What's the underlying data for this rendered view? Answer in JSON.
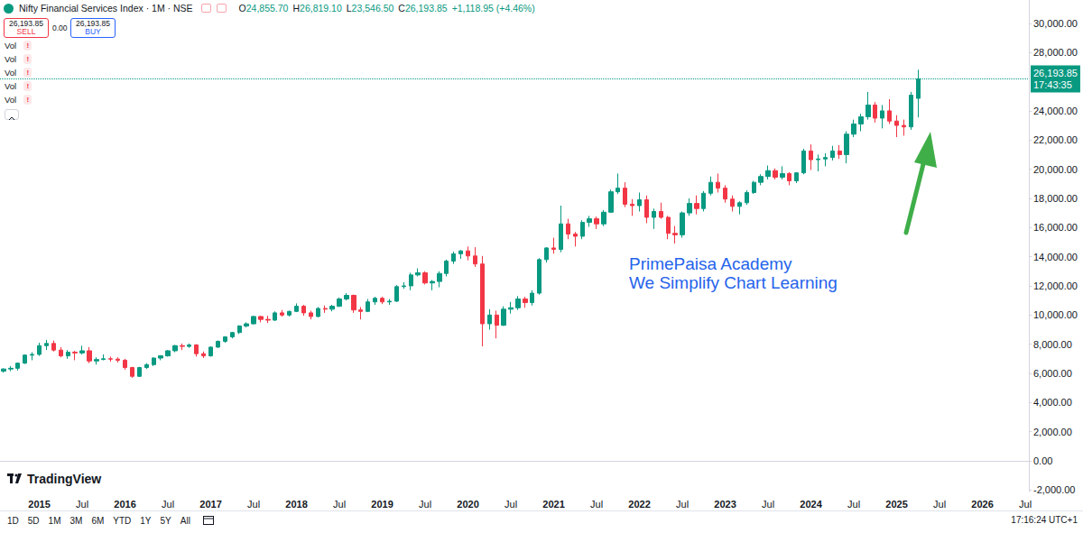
{
  "chart_data": {
    "type": "candlestick",
    "title": "Nifty Financial Services Index · 1M · NSE",
    "ohlc_readout": [
      {
        "label": "O",
        "value": "24,855.70"
      },
      {
        "label": "H",
        "value": "26,819.10"
      },
      {
        "label": "L",
        "value": "23,546.50"
      },
      {
        "label": "C",
        "value": "26,193.85"
      }
    ],
    "change": "+1,118.95 (+4.46%)",
    "annotations": [
      "PrimePaisa Academy",
      "We Simplify Chart Learning"
    ],
    "last_price": {
      "value": 26193.85,
      "label": "26,193.85",
      "countdown": "17:43:35"
    },
    "color": "#089981",
    "grid": false,
    "categories": [
      null,
      null,
      null,
      null,
      null,
      "2015",
      null,
      null,
      null,
      null,
      null,
      "Jul",
      null,
      null,
      null,
      null,
      null,
      "2016",
      null,
      null,
      null,
      null,
      null,
      "Jul",
      null,
      null,
      null,
      null,
      null,
      "2017",
      null,
      null,
      null,
      null,
      null,
      "Jul",
      null,
      null,
      null,
      null,
      null,
      "2018",
      null,
      null,
      null,
      null,
      null,
      "Jul",
      null,
      null,
      null,
      null,
      null,
      "2019",
      null,
      null,
      null,
      null,
      null,
      "Jul",
      null,
      null,
      null,
      null,
      null,
      "2020",
      null,
      null,
      null,
      null,
      null,
      "Jul",
      null,
      null,
      null,
      null,
      null,
      "2021",
      null,
      null,
      null,
      null,
      null,
      "Jul",
      null,
      null,
      null,
      null,
      null,
      "2022",
      null,
      null,
      null,
      null,
      null,
      "Jul",
      null,
      null,
      null,
      null,
      null,
      "2023",
      null,
      null,
      null,
      null,
      null,
      "Jul",
      null,
      null,
      null,
      null,
      null,
      "2024",
      null,
      null,
      null,
      null,
      null,
      "Jul",
      null,
      null,
      null,
      null,
      null,
      "2025",
      null,
      null,
      null,
      null,
      null,
      "Jul",
      null,
      null,
      null,
      null,
      null,
      "2026",
      null,
      null,
      null,
      null,
      null,
      "Jul"
    ],
    "open": [
      6150,
      6300,
      6350,
      6700,
      7250,
      7300,
      7900,
      8050,
      7600,
      7200,
      7450,
      7400,
      7550,
      6850,
      6950,
      7000,
      6980,
      6900,
      6400,
      5800,
      6400,
      6600,
      7050,
      7200,
      7550,
      7900,
      7850,
      7950,
      7350,
      7200,
      7800,
      8200,
      8500,
      8800,
      9250,
      9400,
      9900,
      9700,
      9650,
      10150,
      10000,
      10250,
      10600,
      10150,
      9900,
      10450,
      10400,
      10600,
      11100,
      11350,
      10350,
      10250,
      10900,
      11150,
      10900,
      10950,
      11950,
      12000,
      12750,
      12900,
      12200,
      12300,
      12850,
      13700,
      14200,
      14400,
      14050,
      13500,
      9400,
      10000,
      9300,
      10400,
      10500,
      11100,
      10850,
      11500,
      13800,
      14600,
      14500,
      16250,
      15550,
      15400,
      16350,
      16600,
      16250,
      17050,
      18450,
      18700,
      17600,
      17500,
      17900,
      16700,
      17100,
      16700,
      15600,
      15500,
      17000,
      17650,
      17300,
      18350,
      19100,
      18700,
      17950,
      17450,
      17700,
      18400,
      19100,
      19500,
      19900,
      19450,
      19700,
      19200,
      19750,
      21250,
      20650,
      20700,
      20800,
      21250,
      21000,
      22400,
      23100,
      23600,
      24400,
      23500,
      24000,
      23300,
      23000,
      22900,
      24855.7,
      null,
      null,
      null,
      null,
      null,
      null,
      null,
      null,
      null,
      null,
      null,
      null,
      null,
      null,
      null
    ],
    "high": [
      6350,
      6500,
      6750,
      7300,
      7450,
      8100,
      8300,
      8250,
      7800,
      7600,
      7550,
      7900,
      7800,
      7100,
      7300,
      7150,
      7100,
      7000,
      6450,
      6450,
      6700,
      7100,
      7250,
      7600,
      7950,
      8050,
      8050,
      8000,
      7500,
      7850,
      8250,
      8550,
      8850,
      9300,
      9500,
      9950,
      9950,
      9950,
      10250,
      10350,
      10300,
      10800,
      10700,
      10300,
      10550,
      10650,
      10700,
      11200,
      11500,
      11400,
      10550,
      11100,
      11250,
      11250,
      11100,
      12050,
      12250,
      12900,
      13200,
      13000,
      12400,
      13000,
      13800,
      14350,
      14450,
      14700,
      14650,
      14050,
      10400,
      10300,
      10600,
      10900,
      11300,
      11250,
      11700,
      13900,
      14650,
      15300,
      17500,
      16600,
      15700,
      16500,
      16800,
      16750,
      17200,
      18600,
      19700,
      19100,
      17950,
      18400,
      18200,
      17300,
      17700,
      16800,
      16100,
      17100,
      18000,
      18200,
      18500,
      19500,
      19700,
      18900,
      18200,
      17800,
      18550,
      19200,
      19650,
      20250,
      20050,
      20200,
      19800,
      19800,
      21400,
      21700,
      21000,
      21100,
      21600,
      21650,
      22600,
      23400,
      23800,
      25300,
      24600,
      24400,
      24800,
      23700,
      23400,
      25300,
      26819.1,
      null,
      null,
      null,
      null,
      null,
      null,
      null,
      null,
      null,
      null,
      null,
      null,
      null,
      null,
      null
    ],
    "low": [
      6050,
      6150,
      6200,
      6650,
      6900,
      7200,
      7600,
      7500,
      7100,
      7000,
      6900,
      7300,
      6700,
      6600,
      6900,
      6800,
      6750,
      6250,
      5700,
      5750,
      6300,
      6500,
      6900,
      7150,
      7450,
      7600,
      7750,
      7150,
      7050,
      7150,
      7750,
      8100,
      8400,
      8700,
      9150,
      9350,
      9500,
      9450,
      9600,
      9900,
      9900,
      10200,
      9950,
      9700,
      9850,
      10150,
      10250,
      10550,
      11000,
      10150,
      9700,
      10200,
      10700,
      10750,
      10700,
      10900,
      11800,
      11700,
      12650,
      12100,
      11700,
      11900,
      12650,
      13500,
      13850,
      13750,
      13300,
      7850,
      9000,
      8400,
      9250,
      10100,
      10350,
      10500,
      10650,
      11400,
      13600,
      14200,
      14300,
      15200,
      14700,
      15200,
      16050,
      15900,
      16100,
      17000,
      18300,
      17400,
      16800,
      17100,
      16300,
      15900,
      16600,
      15200,
      14900,
      15300,
      16800,
      16900,
      17100,
      18200,
      18400,
      17700,
      17100,
      16900,
      17550,
      18300,
      18900,
      19300,
      19300,
      19300,
      18900,
      19050,
      19650,
      19950,
      19850,
      20200,
      20600,
      20700,
      20400,
      22200,
      22600,
      23400,
      23200,
      22800,
      23100,
      22200,
      22300,
      22700,
      23546.5,
      null,
      null,
      null,
      null,
      null,
      null,
      null,
      null,
      null,
      null,
      null,
      null,
      null,
      null,
      null
    ],
    "close": [
      6300,
      6350,
      6700,
      7250,
      7300,
      7900,
      8050,
      7600,
      7200,
      7450,
      7400,
      7550,
      6850,
      6950,
      7000,
      6980,
      6900,
      6400,
      5800,
      6400,
      6600,
      7050,
      7200,
      7550,
      7900,
      7850,
      7950,
      7350,
      7200,
      7800,
      8200,
      8500,
      8800,
      9250,
      9400,
      9900,
      9700,
      9650,
      10150,
      10000,
      10250,
      10600,
      10150,
      9900,
      10450,
      10400,
      10600,
      11100,
      11350,
      10350,
      10250,
      10900,
      11150,
      10900,
      10950,
      11950,
      12000,
      12750,
      12900,
      12200,
      12300,
      12850,
      13700,
      14200,
      14400,
      14050,
      13500,
      9400,
      10000,
      9300,
      10400,
      10500,
      11100,
      10850,
      11500,
      13800,
      14600,
      14500,
      16250,
      15550,
      15400,
      16350,
      16600,
      16250,
      17050,
      18450,
      18700,
      17600,
      17500,
      17900,
      16700,
      17100,
      16700,
      15600,
      15500,
      17000,
      17650,
      17300,
      18350,
      19100,
      18700,
      17950,
      17450,
      17700,
      18400,
      19100,
      19500,
      19900,
      19450,
      19700,
      19200,
      19750,
      21250,
      20650,
      20700,
      20800,
      21250,
      21000,
      22400,
      23100,
      23600,
      24400,
      23500,
      24000,
      23300,
      23000,
      22900,
      25074.9,
      26193.85,
      null,
      null,
      null,
      null,
      null,
      null,
      null,
      null,
      null,
      null,
      null,
      null,
      null,
      null,
      null
    ],
    "ylim": [
      -2100,
      31600
    ],
    "yticks": [
      {
        "value": -2000,
        "label": "-2,000.00"
      },
      {
        "value": 0,
        "label": "0.00"
      },
      {
        "value": 2000,
        "label": "2,000.00"
      },
      {
        "value": 4000,
        "label": "4,000.00"
      },
      {
        "value": 6000,
        "label": "6,000.00"
      },
      {
        "value": 8000,
        "label": "8,000.00"
      },
      {
        "value": 10000,
        "label": "10,000.00"
      },
      {
        "value": 12000,
        "label": "12,000.00"
      },
      {
        "value": 14000,
        "label": "14,000.00"
      },
      {
        "value": 16000,
        "label": "16,000.00"
      },
      {
        "value": 18000,
        "label": "18,000.00"
      },
      {
        "value": 20000,
        "label": "20,000.00"
      },
      {
        "value": 22000,
        "label": "22,000.00"
      },
      {
        "value": 24000,
        "label": "24,000.00"
      },
      {
        "value": 28000,
        "label": "28,000.00"
      },
      {
        "value": 30000,
        "label": "30,000.00"
      }
    ]
  },
  "page": {
    "sell": {
      "price": "26,193.85",
      "label": "SELL"
    },
    "spread": "0.00",
    "buy": {
      "price": "26,193.85",
      "label": "BUY"
    },
    "indicators": [
      "Vol",
      "Vol",
      "Vol",
      "Vol",
      "Vol"
    ],
    "indicator_flag": "!",
    "brand": "TradingView",
    "timeframes": [
      "1D",
      "5D",
      "1M",
      "3M",
      "6M",
      "YTD",
      "1Y",
      "5Y",
      "All"
    ],
    "clock": "17:16:24 UTC+1"
  }
}
